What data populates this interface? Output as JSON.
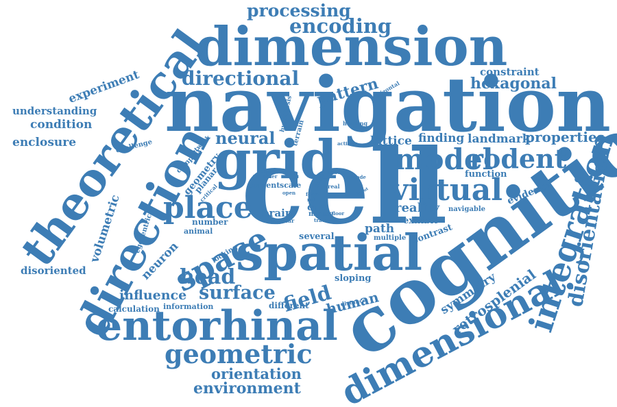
{
  "cloud": {
    "color": "#3d7db5",
    "words": [
      "navigation",
      "cell",
      "cognition",
      "dimension",
      "spatial",
      "theoretical",
      "grid",
      "direction",
      "entorhinal",
      "dimensional.",
      "integration",
      "disorientation",
      "virtual",
      "model",
      "rodent",
      "place",
      "space",
      "geometric",
      "processing",
      "encoding",
      "directional",
      "pattern",
      "hexagonal",
      "constraint",
      "experiment",
      "understanding",
      "condition",
      "enclosure",
      "neural",
      "lattice",
      "finding",
      "landmark",
      "properties",
      "function",
      "evidence",
      "reality",
      "navigable",
      "exhibit",
      "contrast",
      "path",
      "multiple",
      "several",
      "brain",
      "cue",
      "mouse",
      "track",
      "floor",
      "regular",
      "current",
      "scale",
      "real",
      "encode",
      "input",
      "code",
      "linear",
      "form",
      "rat",
      "open",
      "coding",
      "order",
      "critical",
      "planar",
      "geometry",
      "complex",
      "network",
      "challenge",
      "terrain",
      "hypothesis",
      "heading",
      "activity",
      "horizontal",
      "volumetric",
      "egocentric",
      "neuron",
      "number",
      "animal",
      "locking",
      "head",
      "disoriented",
      "influence",
      "surface",
      "field",
      "sloping",
      "human",
      "distance",
      "information",
      "calculation",
      "different",
      "orientation",
      "environment",
      "symmetry",
      "retrosplenial"
    ]
  }
}
